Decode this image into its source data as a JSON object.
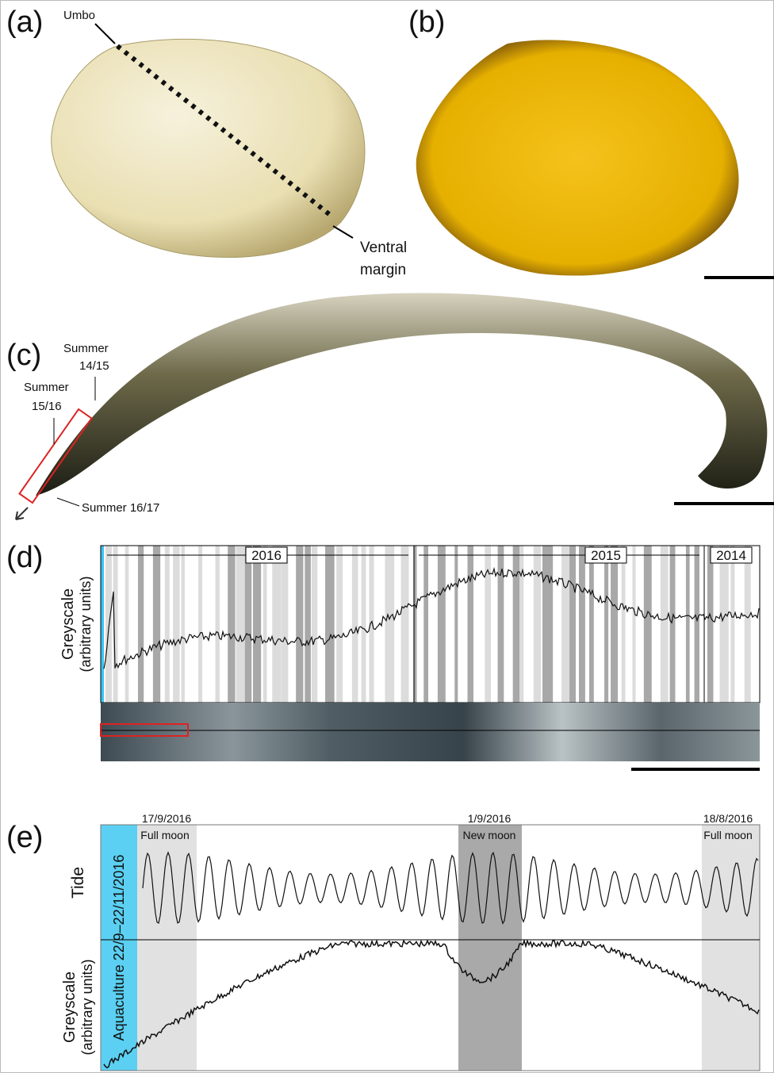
{
  "panel_a": {
    "label": "(a)",
    "umbo": "Umbo",
    "ventral_margin": [
      "Ventral",
      "margin"
    ]
  },
  "panel_b": {
    "label": "(b)"
  },
  "panel_c": {
    "label": "(c)",
    "summer_14_15": [
      "Summer",
      "14/15"
    ],
    "summer_15_16": [
      "Summer",
      "15/16"
    ],
    "summer_16_17": "Summer 16/17"
  },
  "panel_d": {
    "label": "(d)",
    "y_label": [
      "Greyscale",
      "(arbitrary units)"
    ],
    "years": [
      "2016",
      "2015",
      "2014"
    ]
  },
  "panel_e": {
    "label": "(e)",
    "tide": "Tide",
    "y_label": [
      "Greyscale",
      "(arbitrary units)"
    ],
    "aquaculture": "Aquaculture 22/9–22/11/2016",
    "events": [
      {
        "date": "17/9/2016",
        "phase": "Full moon"
      },
      {
        "date": "1/9/2016",
        "phase": "New moon"
      },
      {
        "date": "18/8/2016",
        "phase": "Full moon"
      }
    ]
  }
}
